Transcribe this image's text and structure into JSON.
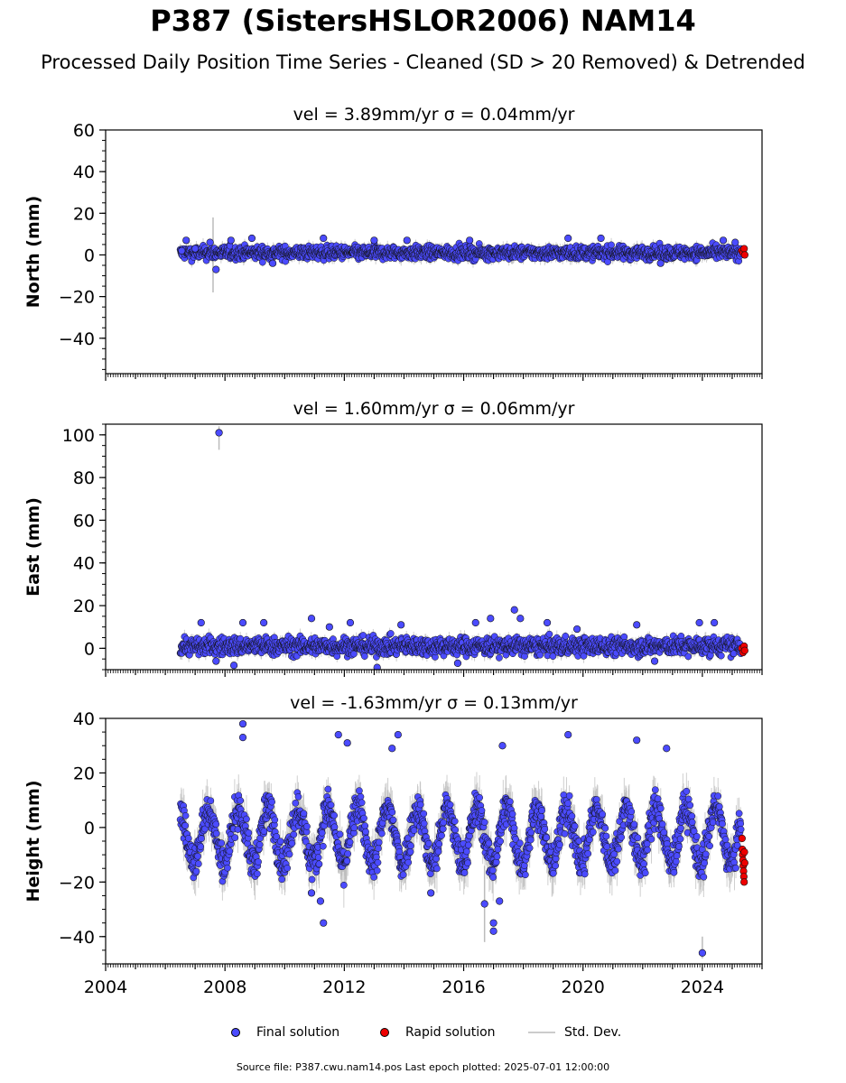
{
  "header": {
    "title": "P387 (SistersHSLOR2006) NAM14",
    "subtitle": "Processed Daily Position Time Series - Cleaned (SD > 20 Removed) & Detrended"
  },
  "legend": {
    "final_label": "Final solution",
    "rapid_label": "Rapid solution",
    "std_label": "Std. Dev."
  },
  "footer": "Source file: P387.cwu.nam14.pos  Last epoch plotted: 2025-07-01 12:00:00",
  "colors": {
    "final": "#4b4bff",
    "rapid": "#ee0000",
    "std": "#bbbbbb"
  },
  "chart_data": [
    {
      "type": "scatter",
      "title": "vel = 3.89mm/yr   σ = 0.04mm/yr",
      "ylabel": "North (mm)",
      "xlim": [
        2004,
        2026
      ],
      "ylim": [
        -57,
        60
      ],
      "yticks": [
        -40,
        -20,
        0,
        20,
        40,
        60
      ],
      "xticks": [
        2004,
        2008,
        2012,
        2016,
        2020,
        2024
      ],
      "data_start": 2006.5,
      "rapid_start": 2025.3,
      "final_typical_range": [
        -2,
        4
      ],
      "final_points": [
        [
          2006.55,
          2
        ],
        [
          2006.7,
          7
        ],
        [
          2007.0,
          3
        ],
        [
          2007.5,
          6
        ],
        [
          2007.7,
          -7
        ],
        [
          2008.2,
          7
        ],
        [
          2008.9,
          8
        ],
        [
          2009.6,
          -4
        ],
        [
          2011.3,
          8
        ],
        [
          2013.0,
          7
        ],
        [
          2014.1,
          7
        ],
        [
          2016.2,
          7
        ],
        [
          2019.5,
          8
        ],
        [
          2020.6,
          8
        ],
        [
          2022.6,
          -4
        ],
        [
          2024.7,
          7
        ],
        [
          2025.1,
          6
        ]
      ],
      "rapid_points": [
        [
          2025.32,
          2
        ],
        [
          2025.36,
          1
        ],
        [
          2025.4,
          3
        ],
        [
          2025.42,
          0
        ]
      ],
      "std_points": [
        [
          2007.6,
          -18,
          18
        ]
      ]
    },
    {
      "type": "scatter",
      "title": "vel = 1.60mm/yr   σ = 0.06mm/yr",
      "ylabel": "East (mm)",
      "xlim": [
        2004,
        2026
      ],
      "ylim": [
        -10,
        105
      ],
      "yticks": [
        0,
        20,
        40,
        60,
        80,
        100
      ],
      "xticks": [
        2004,
        2008,
        2012,
        2016,
        2020,
        2024
      ],
      "data_start": 2006.5,
      "rapid_start": 2025.3,
      "final_typical_range": [
        -3,
        5
      ],
      "final_points": [
        [
          2007.8,
          101
        ],
        [
          2007.2,
          12
        ],
        [
          2007.7,
          -6
        ],
        [
          2008.3,
          -8
        ],
        [
          2008.6,
          12
        ],
        [
          2009.3,
          12
        ],
        [
          2010.9,
          14
        ],
        [
          2011.5,
          10
        ],
        [
          2012.2,
          12
        ],
        [
          2013.9,
          11
        ],
        [
          2013.1,
          -9
        ],
        [
          2016.4,
          12
        ],
        [
          2016.9,
          14
        ],
        [
          2017.7,
          18
        ],
        [
          2017.9,
          14
        ],
        [
          2018.8,
          12
        ],
        [
          2019.8,
          9
        ],
        [
          2021.8,
          11
        ],
        [
          2023.9,
          12
        ],
        [
          2024.4,
          12
        ],
        [
          2022.4,
          -6
        ],
        [
          2015.8,
          -7
        ]
      ],
      "rapid_points": [
        [
          2025.32,
          0
        ],
        [
          2025.36,
          -2
        ],
        [
          2025.4,
          1
        ],
        [
          2025.42,
          -1
        ]
      ],
      "std_points": [
        [
          2007.8,
          93,
          104
        ]
      ]
    },
    {
      "type": "scatter",
      "title": "vel = -1.63mm/yr   σ = 0.13mm/yr",
      "ylabel": "Height (mm)",
      "xlim": [
        2004,
        2026
      ],
      "ylim": [
        -50,
        40
      ],
      "yticks": [
        -40,
        -20,
        0,
        20,
        40
      ],
      "xticks": [
        2004,
        2008,
        2012,
        2016,
        2020,
        2024
      ],
      "x_tick_labels_shown": true,
      "data_start": 2006.5,
      "rapid_start": 2025.3,
      "seasonal_amplitude": 10,
      "final_points": [
        [
          2008.6,
          38
        ],
        [
          2008.6,
          33
        ],
        [
          2011.8,
          34
        ],
        [
          2012.1,
          31
        ],
        [
          2013.8,
          34
        ],
        [
          2013.6,
          29
        ],
        [
          2017.3,
          30
        ],
        [
          2019.5,
          34
        ],
        [
          2021.8,
          32
        ],
        [
          2022.8,
          29
        ],
        [
          2011.2,
          -27
        ],
        [
          2011.3,
          -35
        ],
        [
          2017.0,
          -35
        ],
        [
          2017.0,
          -38
        ],
        [
          2016.7,
          -28
        ],
        [
          2017.2,
          -27
        ],
        [
          2014.9,
          -24
        ],
        [
          2024.0,
          -46
        ],
        [
          2010.9,
          -24
        ]
      ],
      "rapid_points": [
        [
          2025.33,
          -4
        ],
        [
          2025.34,
          -8
        ],
        [
          2025.35,
          -10
        ],
        [
          2025.36,
          -12
        ],
        [
          2025.37,
          -14
        ],
        [
          2025.38,
          -16
        ],
        [
          2025.39,
          -18
        ],
        [
          2025.4,
          -20
        ],
        [
          2025.41,
          -9
        ],
        [
          2025.42,
          -13
        ]
      ],
      "std_points": [
        [
          2024.0,
          -48,
          -40
        ],
        [
          2016.7,
          -42,
          -14
        ]
      ]
    }
  ]
}
